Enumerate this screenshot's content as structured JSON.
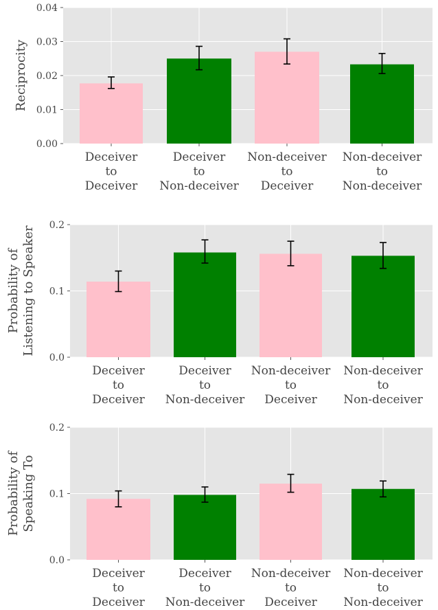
{
  "chart_data": [
    {
      "type": "bar",
      "title": "",
      "xlabel": "",
      "ylabel": [
        "Reciprocity"
      ],
      "ylim": [
        0,
        0.04
      ],
      "yticks": [
        "0.00",
        "0.01",
        "0.02",
        "0.03",
        "0.04"
      ],
      "categories": [
        [
          "Deceiver",
          "to",
          "Deceiver"
        ],
        [
          "Deceiver",
          "to",
          "Non-deceiver"
        ],
        [
          "Non-deceiver",
          "to",
          "Deceiver"
        ],
        [
          "Non-deceiver",
          "to",
          "Non-deceiver"
        ]
      ],
      "values": [
        0.0177,
        0.025,
        0.027,
        0.0233
      ],
      "errors": [
        [
          0.0162,
          0.0196
        ],
        [
          0.0217,
          0.0286
        ],
        [
          0.0234,
          0.0308
        ],
        [
          0.0206,
          0.0265
        ]
      ],
      "colors": [
        "#ffc0cb",
        "#008000",
        "#ffc0cb",
        "#008000"
      ],
      "grid": true
    },
    {
      "type": "bar",
      "title": "",
      "xlabel": "",
      "ylabel": [
        "Probability of",
        "Listening to Speaker"
      ],
      "ylim": [
        0,
        0.2
      ],
      "yticks": [
        "0.0",
        "0.1",
        "0.2"
      ],
      "categories": [
        [
          "Deceiver",
          "to",
          "Deceiver"
        ],
        [
          "Deceiver",
          "to",
          "Non-deceiver"
        ],
        [
          "Non-deceiver",
          "to",
          "Deceiver"
        ],
        [
          "Non-deceiver",
          "to",
          "Non-deceiver"
        ]
      ],
      "values": [
        0.114,
        0.158,
        0.156,
        0.153
      ],
      "errors": [
        [
          0.099,
          0.13
        ],
        [
          0.142,
          0.177
        ],
        [
          0.138,
          0.175
        ],
        [
          0.134,
          0.173
        ]
      ],
      "colors": [
        "#ffc0cb",
        "#008000",
        "#ffc0cb",
        "#008000"
      ],
      "grid": true
    },
    {
      "type": "bar",
      "title": "",
      "xlabel": "",
      "ylabel": [
        "Probability of",
        "Speaking To"
      ],
      "ylim": [
        0,
        0.2
      ],
      "yticks": [
        "0.0",
        "0.1",
        "0.2"
      ],
      "categories": [
        [
          "Deceiver",
          "to",
          "Deceiver"
        ],
        [
          "Deceiver",
          "to",
          "Non-deceiver"
        ],
        [
          "Non-deceiver",
          "to",
          "Deceiver"
        ],
        [
          "Non-deceiver",
          "to",
          "Non-deceiver"
        ]
      ],
      "values": [
        0.092,
        0.098,
        0.115,
        0.107
      ],
      "errors": [
        [
          0.08,
          0.104
        ],
        [
          0.087,
          0.11
        ],
        [
          0.102,
          0.129
        ],
        [
          0.095,
          0.119
        ]
      ],
      "colors": [
        "#ffc0cb",
        "#008000",
        "#ffc0cb",
        "#008000"
      ],
      "grid": true
    }
  ]
}
